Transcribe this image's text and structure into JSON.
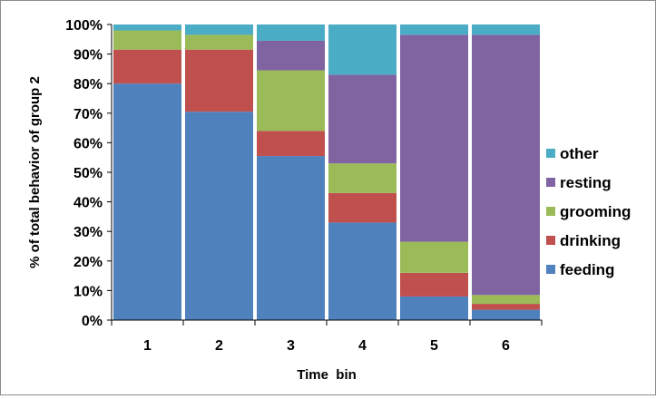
{
  "chart_data": {
    "type": "bar",
    "stacked": true,
    "normalized_percent": true,
    "categories": [
      "1",
      "2",
      "3",
      "4",
      "5",
      "6"
    ],
    "series": [
      {
        "name": "feeding",
        "color": "#4F81BD",
        "values": [
          80,
          70.5,
          55.5,
          33,
          8,
          3.5
        ]
      },
      {
        "name": "drinking",
        "color": "#C0504D",
        "values": [
          11.5,
          21,
          8.5,
          10,
          8,
          2
        ]
      },
      {
        "name": "grooming",
        "color": "#9BBB59",
        "values": [
          6.5,
          5,
          20.5,
          10,
          10.5,
          3
        ]
      },
      {
        "name": "resting",
        "color": "#8064A2",
        "values": [
          0,
          0,
          10,
          30,
          70,
          88
        ]
      },
      {
        "name": "other",
        "color": "#4BACC6",
        "values": [
          2,
          3.5,
          5.5,
          17,
          3.5,
          3.5
        ]
      }
    ],
    "xlabel": "Time  bin",
    "ylabel": "% of total behavior of group 2",
    "ylim": [
      0,
      100
    ],
    "yticks": [
      "0%",
      "10%",
      "20%",
      "30%",
      "40%",
      "50%",
      "60%",
      "70%",
      "80%",
      "90%",
      "100%"
    ],
    "grid": false,
    "legend_position": "right",
    "legend_order": [
      "other",
      "resting",
      "grooming",
      "drinking",
      "feeding"
    ]
  }
}
